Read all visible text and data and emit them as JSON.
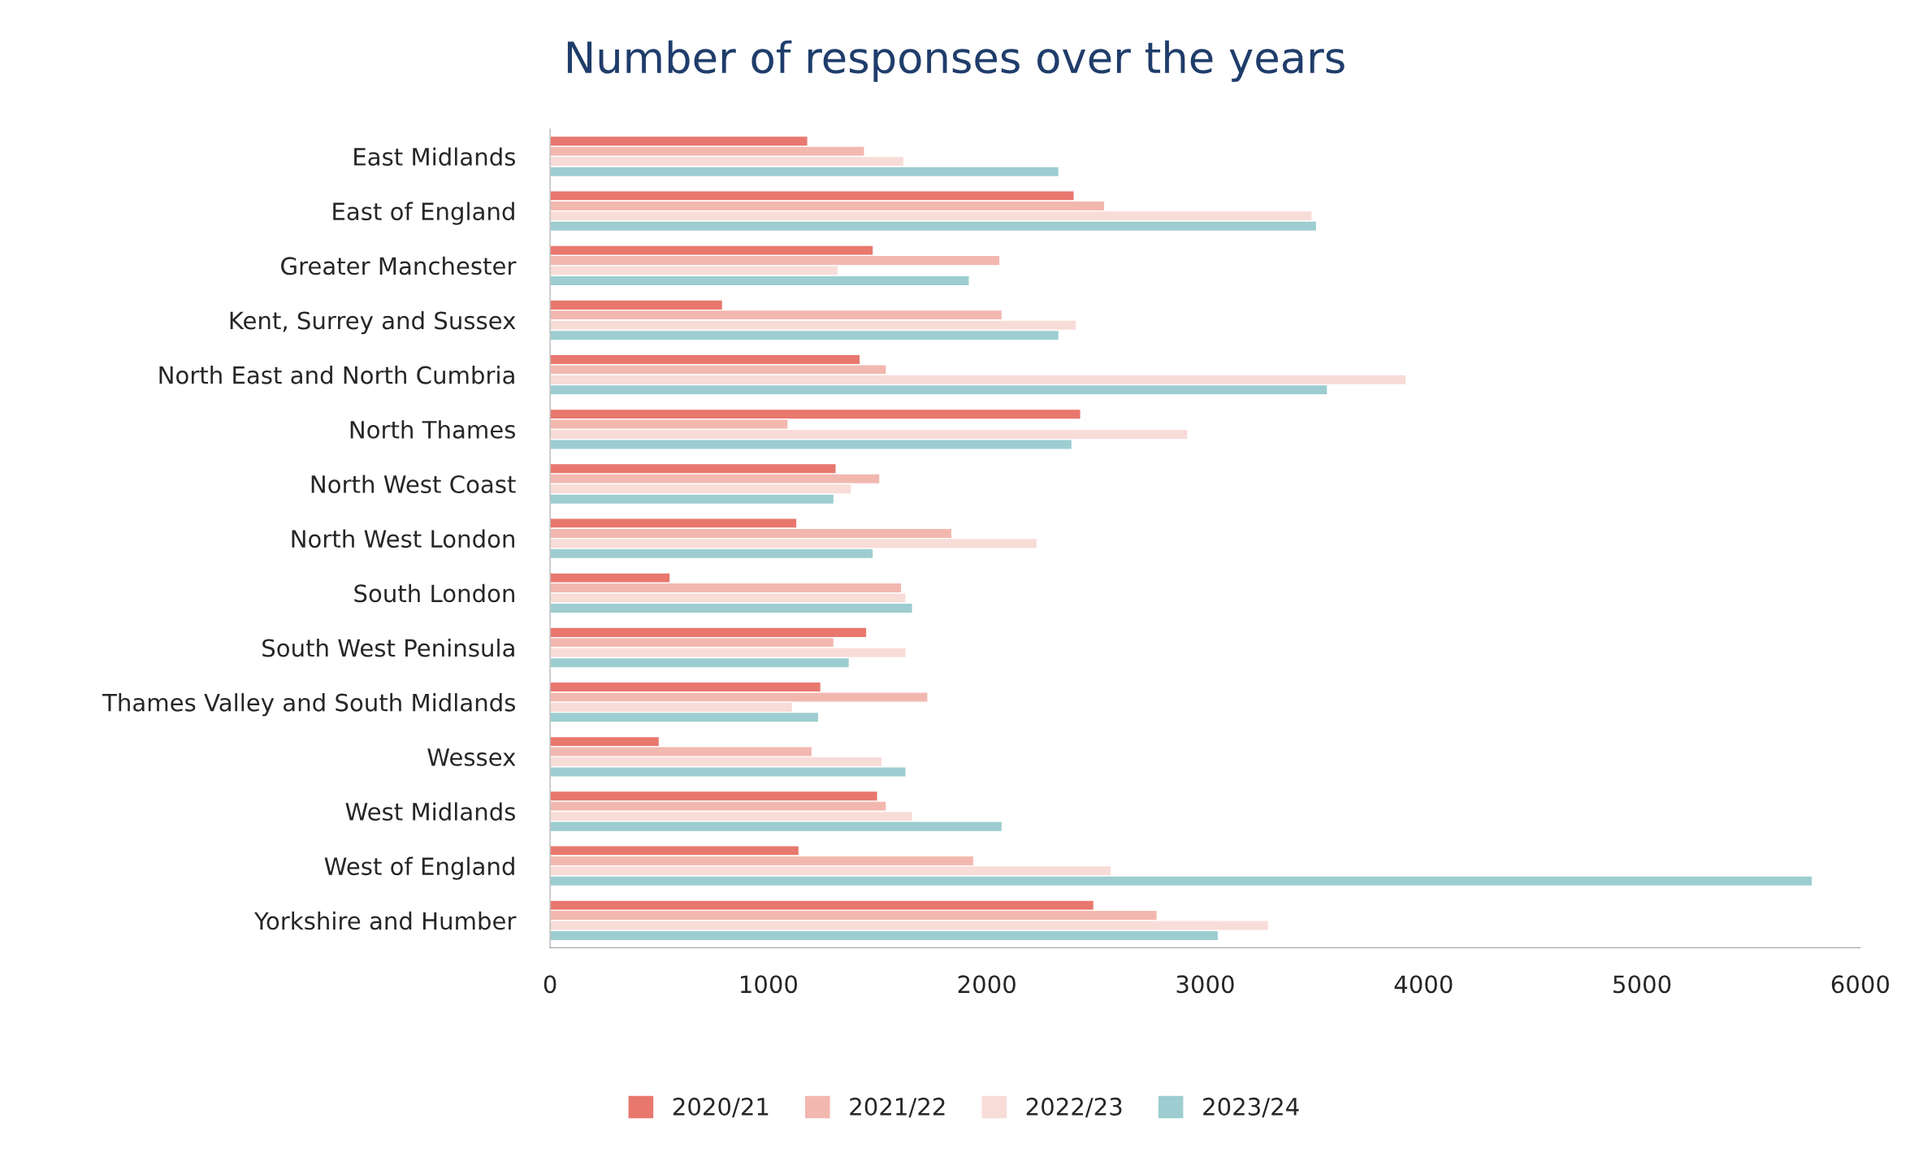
{
  "chart_data": {
    "type": "bar",
    "orientation": "horizontal",
    "title": "Number of responses over the years",
    "categories": [
      "East Midlands",
      "East of England",
      "Greater Manchester",
      "Kent, Surrey and Sussex",
      "North East and North Cumbria",
      "North Thames",
      "North West Coast",
      "North West London",
      "South London",
      "South West Peninsula",
      "Thames Valley and South Midlands",
      "Wessex",
      "West Midlands",
      "West of England",
      "Yorkshire and Humber"
    ],
    "series": [
      {
        "name": "2020/21",
        "color": "#e8776e",
        "values": [
          1180,
          2400,
          1480,
          790,
          1420,
          2430,
          1310,
          1130,
          550,
          1450,
          1240,
          500,
          1500,
          1140,
          2490
        ]
      },
      {
        "name": "2021/22",
        "color": "#f2b8b0",
        "values": [
          1440,
          2540,
          2060,
          2070,
          1540,
          1090,
          1510,
          1840,
          1610,
          1300,
          1730,
          1200,
          1540,
          1940,
          2780
        ]
      },
      {
        "name": "2022/23",
        "color": "#f8dcd8",
        "values": [
          1620,
          3490,
          1320,
          2410,
          3920,
          2920,
          1380,
          2230,
          1630,
          1630,
          1110,
          1520,
          1660,
          2570,
          3290
        ]
      },
      {
        "name": "2023/24",
        "color": "#9dcdd0",
        "values": [
          2330,
          3510,
          1920,
          2330,
          3560,
          2390,
          1300,
          1480,
          1660,
          1370,
          1230,
          1630,
          2070,
          5780,
          3060
        ]
      }
    ],
    "xlim": [
      0,
      6000
    ],
    "xticks": [
      0,
      1000,
      2000,
      3000,
      4000,
      5000,
      6000
    ],
    "grid": false,
    "legend": "bottom"
  }
}
